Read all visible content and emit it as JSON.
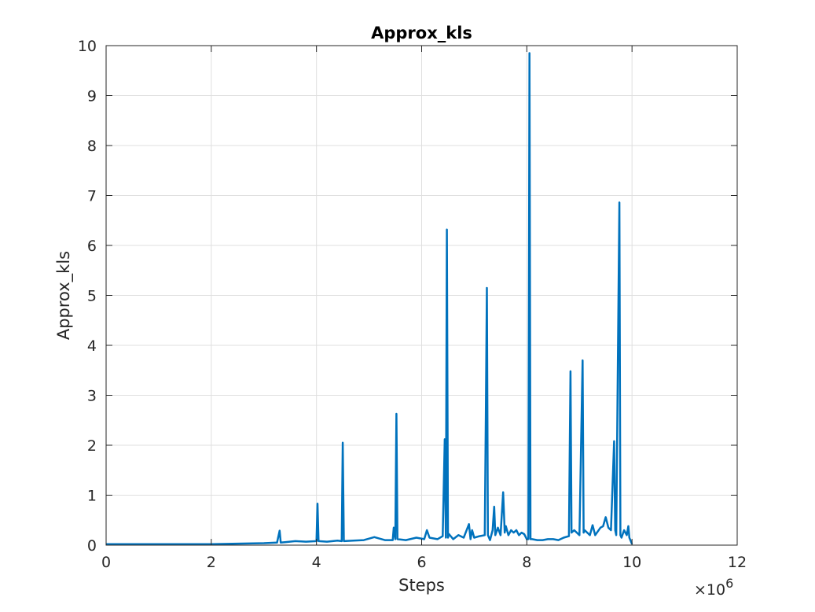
{
  "chart_data": {
    "type": "line",
    "title": "Approx_kls",
    "xlabel": "Steps",
    "ylabel": "Approx_kls",
    "x_exponent_label": "×10",
    "x_exponent_power": "6",
    "x_scale": 1000000,
    "xlim": [
      0,
      12000000
    ],
    "ylim": [
      0,
      10
    ],
    "xticks": [
      0,
      2,
      4,
      6,
      8,
      10,
      12
    ],
    "yticks": [
      0,
      1,
      2,
      3,
      4,
      5,
      6,
      7,
      8,
      9,
      10
    ],
    "grid": true,
    "line_color": "#0072bd",
    "series": [
      {
        "x": [
          0,
          500000,
          1000000,
          1500000,
          2000000,
          2500000,
          3000000,
          3250000,
          3300000,
          3320000,
          3400000,
          3600000,
          3800000,
          4000000,
          4020000,
          4040000,
          4200000,
          4400000,
          4480000,
          4500000,
          4520000,
          4700000,
          4900000,
          5100000,
          5300000,
          5450000,
          5470000,
          5500000,
          5520000,
          5540000,
          5700000,
          5900000,
          6050000,
          6100000,
          6150000,
          6300000,
          6400000,
          6440000,
          6460000,
          6480000,
          6500000,
          6520000,
          6600000,
          6700000,
          6800000,
          6900000,
          6930000,
          6960000,
          7000000,
          7100000,
          7200000,
          7220000,
          7240000,
          7260000,
          7300000,
          7350000,
          7380000,
          7400000,
          7450000,
          7500000,
          7550000,
          7580000,
          7600000,
          7650000,
          7700000,
          7750000,
          7800000,
          7850000,
          7900000,
          7950000,
          8000000,
          8030000,
          8050000,
          8070000,
          8100000,
          8200000,
          8300000,
          8400000,
          8500000,
          8600000,
          8700000,
          8800000,
          8830000,
          8850000,
          8900000,
          9000000,
          9060000,
          9080000,
          9100000,
          9200000,
          9250000,
          9300000,
          9400000,
          9450000,
          9500000,
          9550000,
          9600000,
          9660000,
          9680000,
          9700000,
          9760000,
          9780000,
          9800000,
          9850000,
          9900000,
          9930000,
          9950000,
          10000000
        ],
        "y": [
          0.02,
          0.02,
          0.02,
          0.02,
          0.02,
          0.03,
          0.04,
          0.05,
          0.29,
          0.05,
          0.06,
          0.08,
          0.07,
          0.08,
          0.83,
          0.08,
          0.07,
          0.09,
          0.08,
          2.05,
          0.08,
          0.09,
          0.1,
          0.16,
          0.1,
          0.1,
          0.35,
          0.12,
          2.63,
          0.12,
          0.1,
          0.15,
          0.12,
          0.3,
          0.15,
          0.12,
          0.18,
          2.12,
          0.15,
          6.32,
          0.15,
          0.22,
          0.12,
          0.2,
          0.15,
          0.42,
          0.12,
          0.3,
          0.15,
          0.18,
          0.2,
          2.48,
          5.15,
          0.2,
          0.1,
          0.3,
          0.77,
          0.2,
          0.35,
          0.2,
          1.06,
          0.25,
          0.38,
          0.2,
          0.3,
          0.25,
          0.3,
          0.2,
          0.25,
          0.22,
          0.12,
          0.12,
          9.85,
          0.12,
          0.12,
          0.1,
          0.1,
          0.12,
          0.12,
          0.1,
          0.15,
          0.18,
          3.48,
          0.25,
          0.3,
          0.2,
          3.7,
          0.25,
          0.3,
          0.2,
          0.4,
          0.2,
          0.35,
          0.38,
          0.56,
          0.35,
          0.3,
          2.08,
          0.3,
          0.2,
          6.86,
          0.2,
          0.15,
          0.3,
          0.2,
          0.38,
          0.15,
          0.02
        ]
      }
    ]
  }
}
